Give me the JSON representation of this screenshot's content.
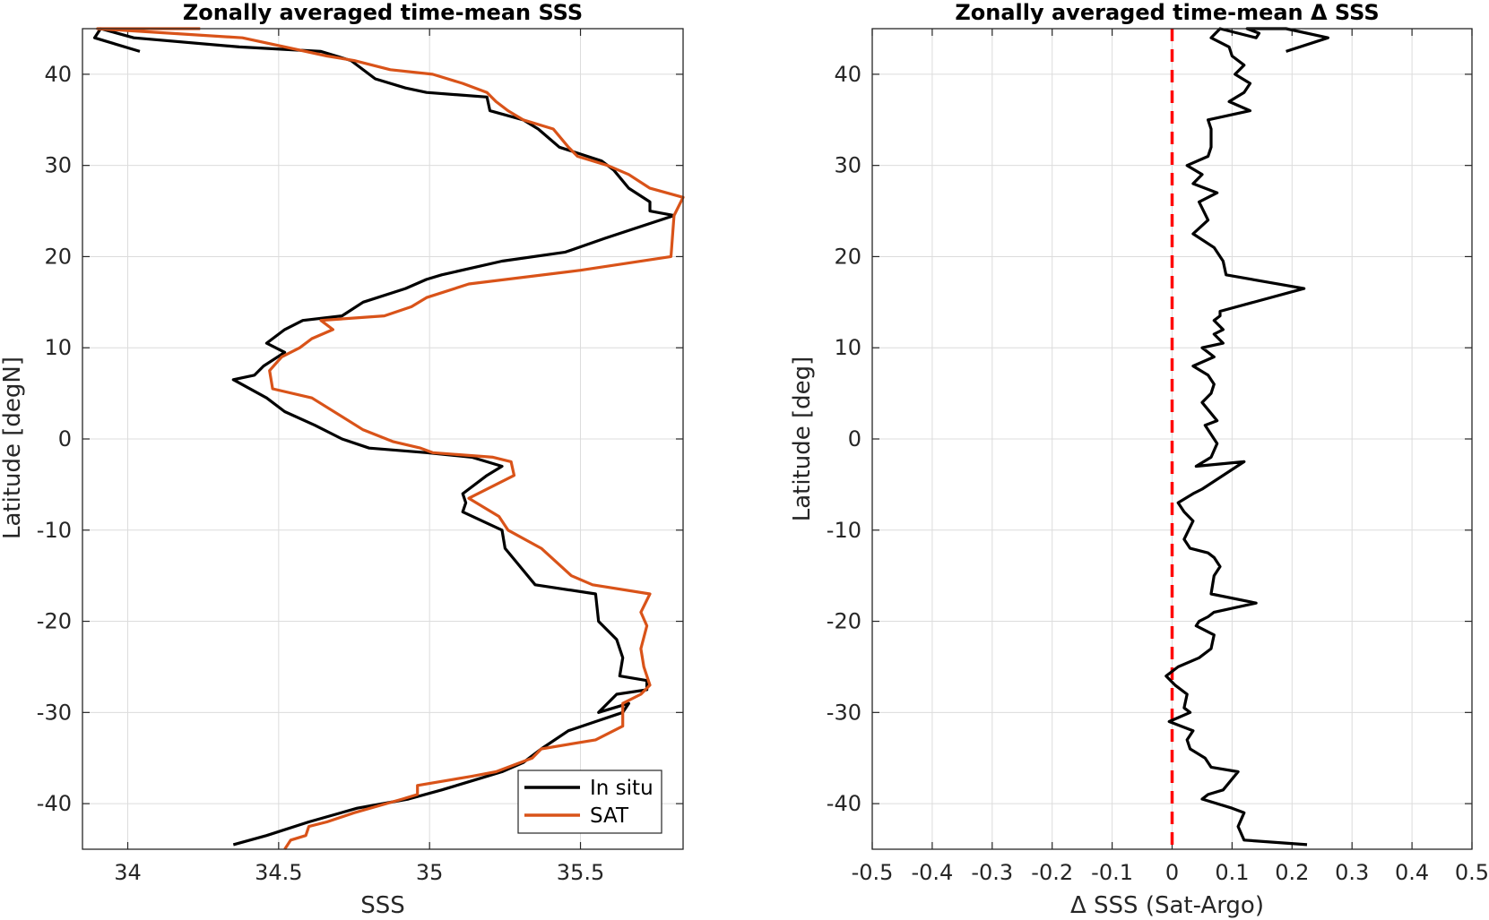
{
  "chart_data": [
    {
      "type": "line",
      "title": "Zonally averaged time-mean SSS",
      "xlabel": "SSS",
      "ylabel": "Latitude [degN]",
      "xlim": [
        33.85,
        35.84
      ],
      "ylim": [
        -45,
        45
      ],
      "xticks": [
        34,
        34.5,
        35,
        35.5
      ],
      "xtick_labels": [
        "34",
        "34.5",
        "35",
        "35.5"
      ],
      "yticks": [
        -40,
        -30,
        -20,
        -10,
        0,
        10,
        20,
        30,
        40
      ],
      "ytick_labels": [
        "-40",
        "-30",
        "-20",
        "-10",
        "0",
        "10",
        "20",
        "30",
        "40"
      ],
      "grid": true,
      "legend": "bottom-right",
      "series": [
        {
          "name": "In situ",
          "color": "#000000",
          "x": [
            34.35,
            34.46,
            34.6,
            34.76,
            34.93,
            35.04,
            35.14,
            35.24,
            35.31,
            35.37,
            35.46,
            35.55,
            35.64,
            35.66,
            35.56,
            35.62,
            35.72,
            35.72,
            35.63,
            35.64,
            35.62,
            35.56,
            35.55,
            35.35,
            35.25,
            35.24,
            35.11,
            35.12,
            35.11,
            35.19,
            35.24,
            35.14,
            34.99,
            34.8,
            34.71,
            34.62,
            34.52,
            34.46,
            34.35,
            34.42,
            34.45,
            34.52,
            34.46,
            34.52,
            34.58,
            34.71,
            34.78,
            34.92,
            34.99,
            35.04,
            35.24,
            35.45,
            35.58,
            35.81,
            35.73,
            35.73,
            35.66,
            35.61,
            35.57,
            35.43,
            35.36,
            35.31,
            35.2,
            35.19,
            34.99,
            34.92,
            34.82,
            34.74,
            34.64,
            34.37,
            34.02,
            33.91,
            33.89,
            34.04
          ],
          "y": [
            -44.5,
            -43.5,
            -42,
            -40.5,
            -39.5,
            -38.5,
            -37.5,
            -36.5,
            -35.5,
            -34,
            -32,
            -31,
            -30,
            -29,
            -30,
            -28,
            -27.5,
            -26.5,
            -26,
            -24,
            -22,
            -20,
            -17,
            -16,
            -12,
            -10,
            -8,
            -7,
            -6,
            -4,
            -3,
            -2,
            -1.5,
            -1,
            0,
            1.5,
            3,
            4.5,
            6.5,
            7,
            8,
            9.5,
            10.5,
            12,
            13,
            13.5,
            15,
            16.5,
            17.5,
            18,
            19.5,
            20.5,
            22,
            24.5,
            25,
            26,
            27.5,
            29.5,
            30.5,
            32,
            34,
            35,
            36,
            37.5,
            38,
            38.5,
            39.5,
            41.5,
            42.5,
            43,
            44,
            45,
            44,
            42.5
          ]
        },
        {
          "name": "SAT",
          "color": "#d95319",
          "x": [
            34.52,
            34.54,
            34.59,
            34.6,
            34.66,
            34.75,
            34.91,
            34.96,
            34.96,
            35.14,
            35.22,
            35.34,
            35.37,
            35.55,
            35.64,
            35.64,
            35.7,
            35.73,
            35.71,
            35.7,
            35.72,
            35.7,
            35.73,
            35.54,
            35.47,
            35.37,
            35.26,
            35.23,
            35.13,
            35.28,
            35.27,
            35.21,
            35.01,
            34.97,
            34.88,
            34.78,
            34.61,
            34.48,
            34.47,
            34.51,
            34.57,
            34.61,
            34.68,
            34.64,
            34.85,
            34.94,
            34.99,
            35.13,
            35.5,
            35.8,
            35.81,
            35.84,
            35.73,
            35.66,
            35.59,
            35.49,
            35.46,
            35.41,
            35.31,
            35.26,
            35.22,
            35.19,
            35.11,
            35.01,
            34.87,
            34.75,
            34.66,
            34.38,
            33.9,
            34.24
          ],
          "y": [
            -45,
            -44,
            -43.5,
            -42.5,
            -42,
            -41,
            -39.5,
            -39,
            -38,
            -37,
            -36.5,
            -35,
            -34,
            -33,
            -31.5,
            -29,
            -28,
            -27,
            -25,
            -23,
            -20.5,
            -19,
            -17,
            -16,
            -15,
            -12,
            -10,
            -8.5,
            -6.5,
            -4,
            -2.5,
            -2,
            -1.5,
            -1,
            -0.3,
            1,
            4.5,
            5.5,
            7.5,
            9,
            10,
            11,
            12,
            13,
            13.5,
            14.5,
            15.5,
            17,
            18.5,
            20,
            24.5,
            26.5,
            27.5,
            29,
            30,
            31,
            32,
            34,
            35,
            36,
            37,
            38,
            39,
            40,
            40.5,
            41.5,
            42,
            44,
            45,
            45
          ]
        }
      ]
    },
    {
      "type": "line",
      "title": "Zonally averaged time-mean Δ SSS",
      "xlabel": "Δ SSS (Sat-Argo)",
      "ylabel": "Latitude [deg]",
      "xlim": [
        -0.5,
        0.5
      ],
      "ylim": [
        -45,
        45
      ],
      "xticks": [
        -0.5,
        -0.4,
        -0.3,
        -0.2,
        -0.1,
        0,
        0.1,
        0.2,
        0.3,
        0.4,
        0.5
      ],
      "xtick_labels": [
        "-0.5",
        "-0.4",
        "-0.3",
        "-0.2",
        "-0.1",
        "0",
        "0.1",
        "0.2",
        "0.3",
        "0.4",
        "0.5"
      ],
      "yticks": [
        -40,
        -30,
        -20,
        -10,
        0,
        10,
        20,
        30,
        40
      ],
      "ytick_labels": [
        "-40",
        "-30",
        "-20",
        "-10",
        "0",
        "10",
        "20",
        "30",
        "40"
      ],
      "grid": true,
      "reference_line": {
        "x": 0,
        "color": "#ff0000",
        "style": "dashed"
      },
      "series": [
        {
          "color": "#000000",
          "x": [
            0.225,
            0.12,
            0.11,
            0.12,
            0.1,
            0.05,
            0.06,
            0.085,
            0.11,
            0.065,
            0.055,
            0.03,
            0.025,
            0.035,
            -0.005,
            0.03,
            0.02,
            0.025,
            0.005,
            -0.01,
            0.01,
            0.045,
            0.065,
            0.07,
            0.04,
            0.045,
            0.06,
            0.07,
            0.14,
            0.065,
            0.07,
            0.08,
            0.07,
            0.06,
            0.03,
            0.02,
            0.035,
            0.02,
            0.01,
            0.035,
            0.05,
            0.12,
            0.04,
            0.065,
            0.075,
            0.055,
            0.075,
            0.05,
            0.065,
            0.07,
            0.06,
            0.035,
            0.07,
            0.05,
            0.085,
            0.07,
            0.085,
            0.07,
            0.08,
            0.08,
            0.22,
            0.09,
            0.085,
            0.07,
            0.035,
            0.06,
            0.045,
            0.075,
            0.035,
            0.05,
            0.025,
            0.06,
            0.065,
            0.065,
            0.06,
            0.13,
            0.095,
            0.12,
            0.13,
            0.105,
            0.12,
            0.1,
            0.095,
            0.065,
            0.08,
            0.14,
            0.145,
            0.125,
            0.155,
            0.14,
            0.19,
            0.26,
            0.19
          ],
          "y": [
            -44.5,
            -44,
            -42.5,
            -41,
            -40.5,
            -39.5,
            -39,
            -38.5,
            -36.5,
            -36,
            -35,
            -34,
            -33,
            -32,
            -31,
            -30,
            -29.5,
            -28,
            -27,
            -26,
            -25,
            -24,
            -23,
            -21.5,
            -20.5,
            -20,
            -19.5,
            -19,
            -18,
            -17,
            -15,
            -14,
            -13,
            -12.5,
            -12,
            -11,
            -9,
            -8,
            -7,
            -6,
            -5.5,
            -2.5,
            -3,
            -2,
            -0.5,
            1.5,
            2,
            4,
            5,
            6,
            7,
            8,
            9,
            10,
            10.5,
            11.5,
            12,
            13,
            13.5,
            14,
            16.5,
            18,
            19.5,
            21,
            22.5,
            24,
            26,
            27,
            28,
            29,
            30,
            31,
            32,
            34,
            35,
            36,
            37,
            38,
            39,
            40,
            41,
            42,
            43,
            44,
            45,
            44,
            44.5,
            45,
            45,
            45,
            45,
            44,
            42.5
          ]
        }
      ]
    }
  ]
}
